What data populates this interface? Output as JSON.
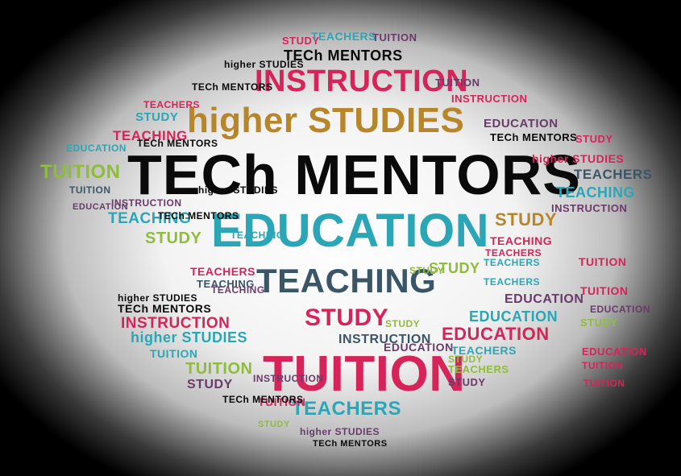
{
  "title": "TECh MENTORS",
  "big_words": {
    "education": "EDUCATION",
    "instruction": "INSTRUCTION",
    "higher_studies": "higher STUDIES",
    "teaching": "TEACHING",
    "study": "STUDY",
    "tuition": "TUITION"
  },
  "small_words": [
    "STUDY",
    "TEACHERS",
    "TUITION",
    "TECh MENTORS",
    "higher STUDIES",
    "TECh MENTORS",
    "INSTRUCTION",
    "TUITION",
    "TEACHERS",
    "STUDY",
    "EDUCATION",
    "TEACHING",
    "EDUCATION",
    "TECh MENTORS",
    "TUITION",
    "STUDY",
    "higher STUDIES",
    "TEACHERS",
    "INSTRUCTION",
    "TEACHING",
    "STUDY",
    "TEACHERS",
    "TUITION",
    "INSTRUCTION",
    "EDUCATION",
    "TEACHING",
    "STUDY",
    "TEACHING",
    "higher STUDIES",
    "TECh MENTORS",
    "INSTRUCTION",
    "higher STUDIES",
    "TUITION",
    "STUDY",
    "EDUCATION",
    "TEACHERS",
    "TUITION",
    "TECh MENTORS",
    "STUDY",
    "STUDY",
    "TEACHERS",
    "TEACHERS",
    "TUITION",
    "TECh MENTORS",
    "INSTRUCTION",
    "EDUCATION",
    "EDUCATION",
    "EDUCATION",
    "STUDY",
    "TUITION",
    "TUITION",
    "STUDY",
    "TEACHING",
    "TEACHERS",
    "higher STUDIES",
    "TECh MENTORS",
    "STUDY",
    "TEACHERS",
    "higher STUDIES",
    "TECh MENTORS",
    "STUDY",
    "TEACHERS",
    "EDUCATION",
    "TUITION",
    "INSTRUCTION",
    "TEACHING",
    "TEACHING",
    "STUDY",
    "TUITION",
    "EDUCATION"
  ],
  "colors": {
    "black": "#0a0a0a",
    "teal": "#2aa6b6",
    "crimson": "#d6245a",
    "gold": "#b8862a",
    "green": "#8fbc3c",
    "slate": "#3a5566",
    "purple": "#6a3a6a"
  }
}
